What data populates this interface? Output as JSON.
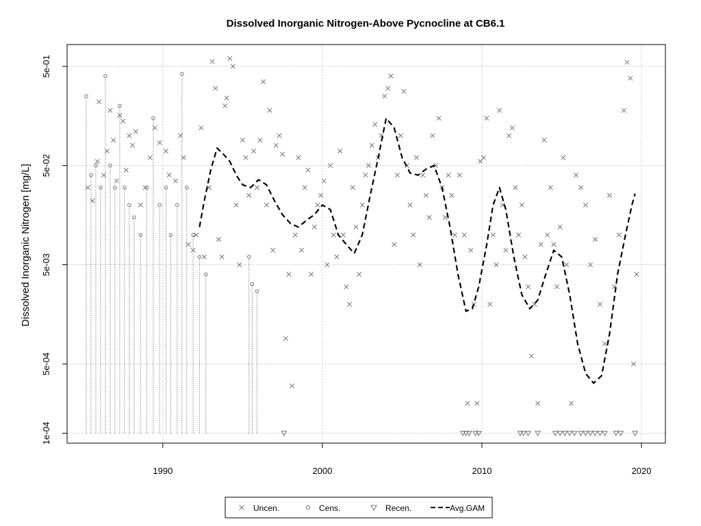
{
  "chart_data": {
    "type": "scatter",
    "title": "Dissolved Inorganic Nitrogen-Above Pycnocline at CB6.1",
    "ylabel": "Dissolved Inorganic Nitrogen [mg/L]",
    "xlabel": "",
    "x_scale": "linear",
    "y_scale": "log",
    "xlim": [
      1984.0,
      2021.5
    ],
    "ylim": [
      7.95e-05,
      0.83
    ],
    "x_ticks": [
      1990,
      2000,
      2010,
      2020
    ],
    "y_ticks": [
      0.0001,
      0.0005,
      0.005,
      0.05,
      0.5
    ],
    "y_tick_labels": [
      "1e-04",
      "5e-04",
      "5e-03",
      "5e-02",
      "5e-01"
    ],
    "grid": true,
    "legend_position": "bottom-center",
    "legend": [
      {
        "symbol": "cross",
        "label": "Uncen."
      },
      {
        "symbol": "circle",
        "label": "Cens."
      },
      {
        "symbol": "triangle-down",
        "label": "Recen."
      },
      {
        "symbol": "dashed-line",
        "label": "Avg.GAM"
      }
    ],
    "colors": {
      "points": "#6e7585",
      "censored_line": "#8a8a8a",
      "gam": "#000000",
      "grid": "#c8c8c8"
    },
    "series": [
      {
        "symbol": "cross",
        "points": [
          [
            1985.3,
            0.03
          ],
          [
            1985.6,
            0.022
          ],
          [
            1985.9,
            0.055
          ],
          [
            1986.0,
            0.22
          ],
          [
            1986.3,
            0.04
          ],
          [
            1986.5,
            0.07
          ],
          [
            1986.7,
            0.18
          ],
          [
            1986.9,
            0.09
          ],
          [
            1987.1,
            0.035
          ],
          [
            1987.3,
            0.16
          ],
          [
            1987.5,
            0.14
          ],
          [
            1987.7,
            0.045
          ],
          [
            1987.9,
            0.1
          ],
          [
            1988.1,
            0.08
          ],
          [
            1988.3,
            0.11
          ],
          [
            1988.6,
            0.02
          ],
          [
            1988.9,
            0.03
          ],
          [
            1989.2,
            0.06
          ],
          [
            1989.5,
            0.12
          ],
          [
            1989.8,
            0.085
          ],
          [
            1990.2,
            0.07
          ],
          [
            1990.4,
            0.04
          ],
          [
            1990.8,
            0.035
          ],
          [
            1991.1,
            0.1
          ],
          [
            1991.3,
            0.06
          ],
          [
            1991.6,
            0.008
          ],
          [
            1991.9,
            0.007
          ],
          [
            1992.1,
            0.01
          ],
          [
            1992.4,
            0.12
          ],
          [
            1992.6,
            0.006
          ],
          [
            1992.9,
            0.03
          ],
          [
            1993.1,
            0.56
          ],
          [
            1993.3,
            0.3
          ],
          [
            1993.5,
            0.009
          ],
          [
            1993.7,
            0.006
          ],
          [
            1993.9,
            0.2
          ],
          [
            1994.0,
            0.24
          ],
          [
            1994.2,
            0.6
          ],
          [
            1994.4,
            0.5
          ],
          [
            1994.6,
            0.02
          ],
          [
            1994.8,
            0.005
          ],
          [
            1995.0,
            0.09
          ],
          [
            1995.2,
            0.06
          ],
          [
            1995.4,
            0.025
          ],
          [
            1995.7,
            0.07
          ],
          [
            1995.9,
            0.03
          ],
          [
            1996.1,
            0.09
          ],
          [
            1996.3,
            0.35
          ],
          [
            1996.5,
            0.02
          ],
          [
            1996.7,
            0.18
          ],
          [
            1996.9,
            0.007
          ],
          [
            1997.1,
            0.08
          ],
          [
            1997.3,
            0.1
          ],
          [
            1997.5,
            0.065
          ],
          [
            1997.7,
            0.0009
          ],
          [
            1997.9,
            0.004
          ],
          [
            1998.1,
            0.0003
          ],
          [
            1998.3,
            0.01
          ],
          [
            1998.5,
            0.06
          ],
          [
            1998.7,
            0.007
          ],
          [
            1998.9,
            0.03
          ],
          [
            1999.1,
            0.045
          ],
          [
            1999.3,
            0.004
          ],
          [
            1999.5,
            0.012
          ],
          [
            1999.7,
            0.02
          ],
          [
            1999.9,
            0.025
          ],
          [
            2000.1,
            0.035
          ],
          [
            2000.3,
            0.005
          ],
          [
            2000.5,
            0.05
          ],
          [
            2000.7,
            0.01
          ],
          [
            2000.9,
            0.006
          ],
          [
            2001.1,
            0.07
          ],
          [
            2001.3,
            0.01
          ],
          [
            2001.5,
            0.003
          ],
          [
            2001.7,
            0.002
          ],
          [
            2001.9,
            0.03
          ],
          [
            2002.1,
            0.012
          ],
          [
            2002.3,
            0.004
          ],
          [
            2002.5,
            0.02
          ],
          [
            2002.7,
            0.04
          ],
          [
            2002.9,
            0.05
          ],
          [
            2003.1,
            0.08
          ],
          [
            2003.3,
            0.13
          ],
          [
            2003.5,
            0.06
          ],
          [
            2003.7,
            0.1
          ],
          [
            2003.9,
            0.25
          ],
          [
            2004.1,
            0.3
          ],
          [
            2004.3,
            0.4
          ],
          [
            2004.5,
            0.008
          ],
          [
            2004.7,
            0.04
          ],
          [
            2004.9,
            0.1
          ],
          [
            2005.1,
            0.28
          ],
          [
            2005.3,
            0.05
          ],
          [
            2005.5,
            0.02
          ],
          [
            2005.7,
            0.01
          ],
          [
            2005.9,
            0.06
          ],
          [
            2006.1,
            0.005
          ],
          [
            2006.3,
            0.04
          ],
          [
            2006.5,
            0.025
          ],
          [
            2006.7,
            0.015
          ],
          [
            2006.9,
            0.1
          ],
          [
            2007.1,
            0.05
          ],
          [
            2007.3,
            0.15
          ],
          [
            2007.5,
            0.03
          ],
          [
            2007.7,
            0.015
          ],
          [
            2007.9,
            0.04
          ],
          [
            2008.1,
            0.025
          ],
          [
            2008.3,
            0.01
          ],
          [
            2008.6,
            0.04
          ],
          [
            2008.9,
            0.01
          ],
          [
            2009.1,
            0.0002
          ],
          [
            2009.3,
            0.007
          ],
          [
            2009.5,
            0.002
          ],
          [
            2009.7,
            0.0002
          ],
          [
            2009.9,
            0.055
          ],
          [
            2010.1,
            0.06
          ],
          [
            2010.3,
            0.15
          ],
          [
            2010.5,
            0.002
          ],
          [
            2010.7,
            0.01
          ],
          [
            2010.9,
            0.005
          ],
          [
            2011.1,
            0.18
          ],
          [
            2011.3,
            0.02
          ],
          [
            2011.5,
            0.007
          ],
          [
            2011.7,
            0.1
          ],
          [
            2011.9,
            0.12
          ],
          [
            2012.1,
            0.03
          ],
          [
            2012.3,
            0.01
          ],
          [
            2012.5,
            0.02
          ],
          [
            2012.7,
            0.006
          ],
          [
            2012.9,
            0.003
          ],
          [
            2013.1,
            0.0006
          ],
          [
            2013.3,
            0.002
          ],
          [
            2013.5,
            0.0002
          ],
          [
            2013.7,
            0.008
          ],
          [
            2013.9,
            0.09
          ],
          [
            2014.1,
            0.01
          ],
          [
            2014.3,
            0.03
          ],
          [
            2014.5,
            0.008
          ],
          [
            2014.7,
            0.003
          ],
          [
            2014.9,
            0.012
          ],
          [
            2015.1,
            0.06
          ],
          [
            2015.3,
            0.005
          ],
          [
            2015.6,
            0.0002
          ],
          [
            2015.9,
            0.04
          ],
          [
            2016.2,
            0.03
          ],
          [
            2016.5,
            0.02
          ],
          [
            2016.8,
            0.005
          ],
          [
            2017.1,
            0.009
          ],
          [
            2017.4,
            0.002
          ],
          [
            2017.7,
            0.0008
          ],
          [
            2018.0,
            0.025
          ],
          [
            2018.3,
            0.003
          ],
          [
            2018.6,
            0.01
          ],
          [
            2018.9,
            0.18
          ],
          [
            2019.1,
            0.55
          ],
          [
            2019.3,
            0.38
          ],
          [
            2019.5,
            0.0005
          ],
          [
            2019.7,
            0.004
          ]
        ]
      },
      {
        "symbol": "circle",
        "points": [
          [
            1985.2,
            0.25
          ],
          [
            1985.5,
            0.04
          ],
          [
            1985.8,
            0.05
          ],
          [
            1986.1,
            0.03
          ],
          [
            1986.4,
            0.4
          ],
          [
            1986.7,
            0.05
          ],
          [
            1987.0,
            0.03
          ],
          [
            1987.3,
            0.2
          ],
          [
            1987.6,
            0.03
          ],
          [
            1987.9,
            0.02
          ],
          [
            1988.2,
            0.015
          ],
          [
            1988.6,
            0.01
          ],
          [
            1989.0,
            0.03
          ],
          [
            1989.4,
            0.15
          ],
          [
            1989.8,
            0.02
          ],
          [
            1990.2,
            0.03
          ],
          [
            1990.5,
            0.01
          ],
          [
            1990.9,
            0.02
          ],
          [
            1991.2,
            0.42
          ],
          [
            1991.5,
            0.03
          ],
          [
            1991.9,
            0.01
          ],
          [
            1992.3,
            0.006
          ],
          [
            1992.7,
            0.004
          ],
          [
            1995.4,
            0.006
          ],
          [
            1995.6,
            0.0032
          ],
          [
            1995.9,
            0.0027
          ]
        ]
      },
      {
        "symbol": "triangle-down",
        "points": [
          [
            1997.6,
            0.0001
          ],
          [
            2008.8,
            0.0001
          ],
          [
            2009.0,
            0.0001
          ],
          [
            2009.2,
            0.0001
          ],
          [
            2009.6,
            0.0001
          ],
          [
            2009.8,
            0.0001
          ],
          [
            2012.4,
            0.0001
          ],
          [
            2012.6,
            0.0001
          ],
          [
            2012.9,
            0.0001
          ],
          [
            2013.5,
            0.0001
          ],
          [
            2014.6,
            0.0001
          ],
          [
            2014.9,
            0.0001
          ],
          [
            2015.2,
            0.0001
          ],
          [
            2015.5,
            0.0001
          ],
          [
            2015.8,
            0.0001
          ],
          [
            2016.2,
            0.0001
          ],
          [
            2016.5,
            0.0001
          ],
          [
            2016.8,
            0.0001
          ],
          [
            2017.1,
            0.0001
          ],
          [
            2017.4,
            0.0001
          ],
          [
            2017.7,
            0.0001
          ],
          [
            2018.4,
            0.0001
          ],
          [
            2018.7,
            0.0001
          ],
          [
            2019.6,
            0.0001
          ]
        ]
      },
      {
        "symbol": "dashed-line",
        "points": [
          [
            1992.3,
            0.012
          ],
          [
            1992.6,
            0.022
          ],
          [
            1993.0,
            0.045
          ],
          [
            1993.4,
            0.075
          ],
          [
            1993.8,
            0.065
          ],
          [
            1994.2,
            0.055
          ],
          [
            1994.6,
            0.04
          ],
          [
            1995.0,
            0.032
          ],
          [
            1995.5,
            0.03
          ],
          [
            1996.0,
            0.036
          ],
          [
            1996.5,
            0.032
          ],
          [
            1997.0,
            0.022
          ],
          [
            1997.5,
            0.016
          ],
          [
            1998.0,
            0.013
          ],
          [
            1998.5,
            0.012
          ],
          [
            1999.0,
            0.014
          ],
          [
            1999.5,
            0.016
          ],
          [
            2000.0,
            0.02
          ],
          [
            2000.5,
            0.018
          ],
          [
            2001.0,
            0.01
          ],
          [
            2001.5,
            0.008
          ],
          [
            2002.0,
            0.0065
          ],
          [
            2002.5,
            0.01
          ],
          [
            2003.0,
            0.025
          ],
          [
            2003.5,
            0.06
          ],
          [
            2004.0,
            0.15
          ],
          [
            2004.5,
            0.12
          ],
          [
            2005.0,
            0.06
          ],
          [
            2005.5,
            0.042
          ],
          [
            2006.0,
            0.04
          ],
          [
            2006.5,
            0.046
          ],
          [
            2007.0,
            0.05
          ],
          [
            2007.5,
            0.03
          ],
          [
            2008.0,
            0.012
          ],
          [
            2008.5,
            0.004
          ],
          [
            2009.0,
            0.0017
          ],
          [
            2009.4,
            0.0018
          ],
          [
            2009.8,
            0.003
          ],
          [
            2010.3,
            0.008
          ],
          [
            2010.7,
            0.02
          ],
          [
            2011.1,
            0.03
          ],
          [
            2011.5,
            0.018
          ],
          [
            2012.0,
            0.006
          ],
          [
            2012.5,
            0.0025
          ],
          [
            2013.0,
            0.0018
          ],
          [
            2013.5,
            0.0022
          ],
          [
            2014.0,
            0.004
          ],
          [
            2014.5,
            0.007
          ],
          [
            2015.0,
            0.006
          ],
          [
            2015.5,
            0.0025
          ],
          [
            2016.0,
            0.0008
          ],
          [
            2016.5,
            0.0004
          ],
          [
            2017.0,
            0.00032
          ],
          [
            2017.5,
            0.00038
          ],
          [
            2018.0,
            0.001
          ],
          [
            2018.5,
            0.004
          ],
          [
            2019.0,
            0.01
          ],
          [
            2019.4,
            0.02
          ],
          [
            2019.6,
            0.026
          ]
        ]
      }
    ]
  }
}
